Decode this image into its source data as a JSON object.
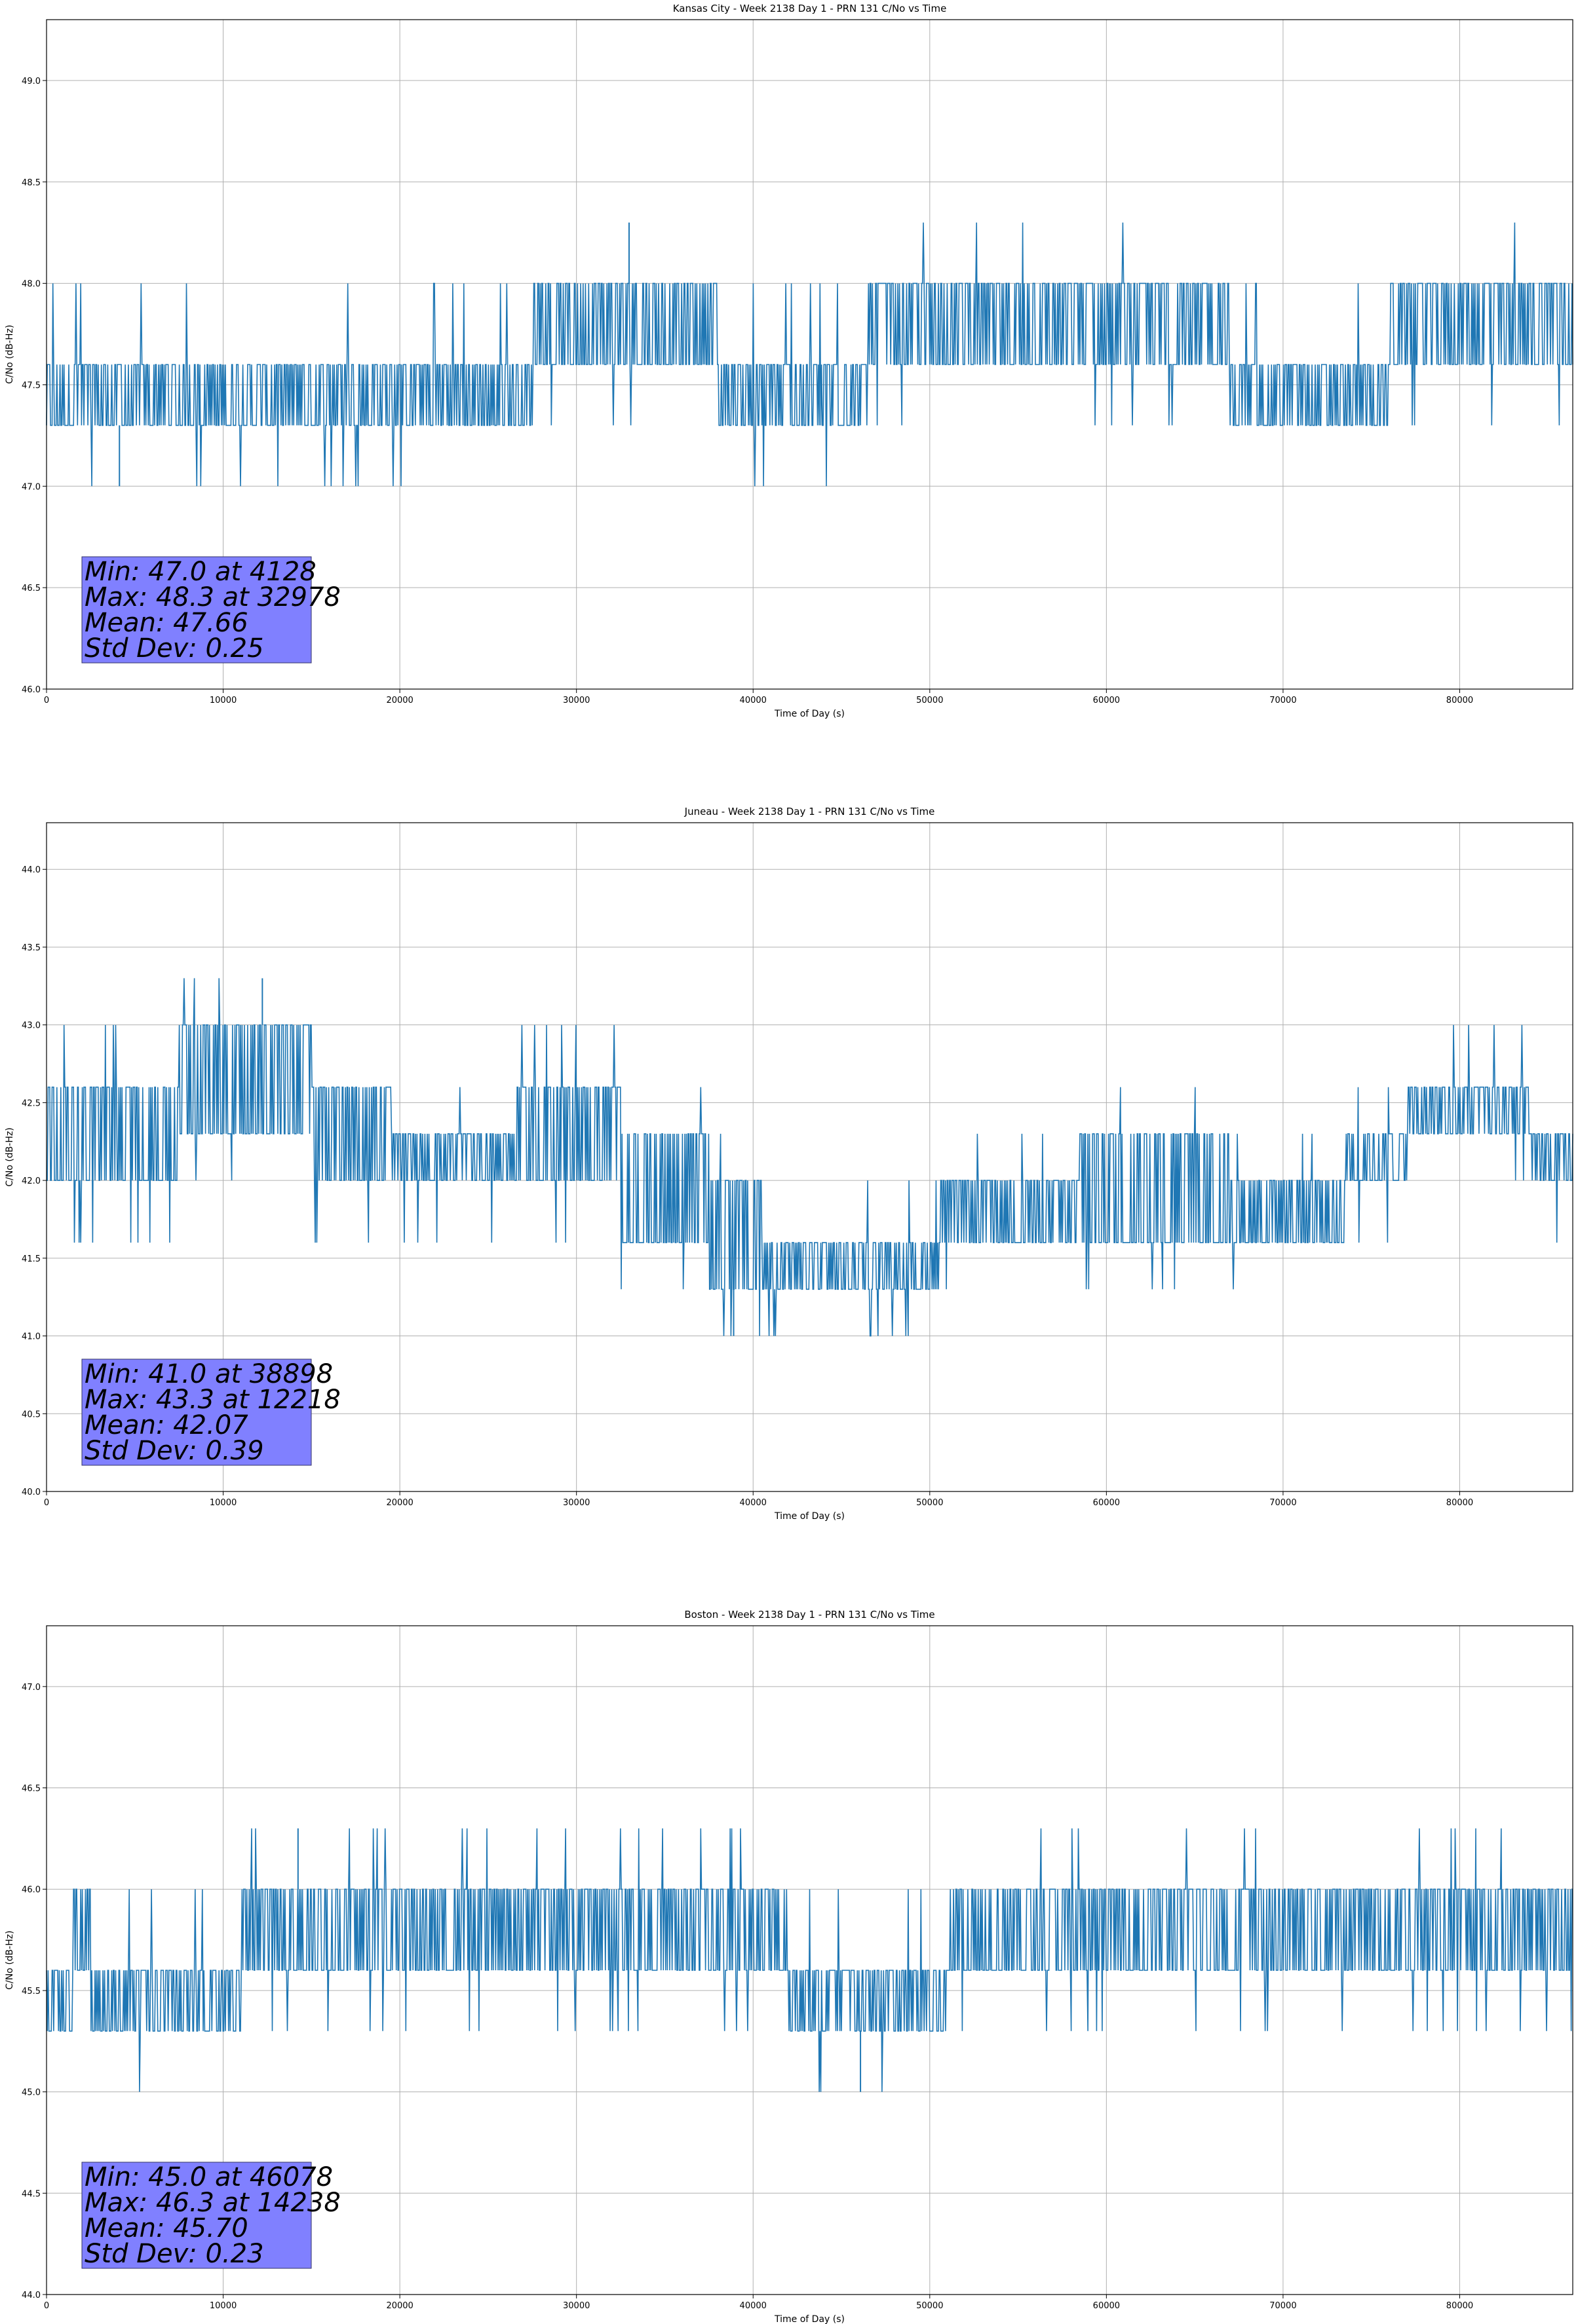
{
  "chart_data": [
    {
      "type": "line",
      "title": "Kansas City - Week 2138 Day 1 - PRN 131 C/No vs Time",
      "xlabel": "Time of Day (s)",
      "ylabel": "C/No (dB-Hz)",
      "xlim": [
        0,
        86400
      ],
      "ylim": [
        46.0,
        49.3
      ],
      "xticks": [
        "0",
        "10000",
        "20000",
        "30000",
        "40000",
        "50000",
        "60000",
        "70000",
        "80000"
      ],
      "yticks": [
        "46.0",
        "46.5",
        "47.0",
        "47.5",
        "48.0",
        "48.5",
        "49.0"
      ],
      "grid": true,
      "series_color": "#1f77b4",
      "quantization_levels": [
        47.0,
        47.3,
        47.6,
        48.0,
        48.3
      ],
      "segments": [
        {
          "x_start": 0,
          "x_end": 300,
          "low": 47.3,
          "high": 47.6
        },
        {
          "x_start": 300,
          "x_end": 400,
          "low": 47.3,
          "high": 48.0
        },
        {
          "x_start": 400,
          "x_end": 15000,
          "low": 47.3,
          "high": 47.6
        },
        {
          "x_start": 15000,
          "x_end": 27500,
          "low": 47.3,
          "high": 47.6
        },
        {
          "x_start": 27500,
          "x_end": 38000,
          "low": 47.6,
          "high": 48.0
        },
        {
          "x_start": 38000,
          "x_end": 46500,
          "low": 47.3,
          "high": 47.6
        },
        {
          "x_start": 46500,
          "x_end": 48500,
          "low": 47.6,
          "high": 48.0
        },
        {
          "x_start": 48500,
          "x_end": 57000,
          "low": 47.6,
          "high": 48.0
        },
        {
          "x_start": 57000,
          "x_end": 67000,
          "low": 47.6,
          "high": 48.0
        },
        {
          "x_start": 67000,
          "x_end": 76000,
          "low": 47.3,
          "high": 47.6
        },
        {
          "x_start": 76000,
          "x_end": 86400,
          "low": 47.6,
          "high": 48.0
        }
      ],
      "stats": {
        "min": "Min: 47.0 at 4128",
        "max": "Max: 48.3 at 32978",
        "mean": "Mean: 47.66",
        "std": "Std Dev: 0.25"
      }
    },
    {
      "type": "line",
      "title": "Juneau - Week 2138 Day 1 - PRN 131 C/No vs Time",
      "xlabel": "Time of Day (s)",
      "ylabel": "C/No (dB-Hz)",
      "xlim": [
        0,
        86400
      ],
      "ylim": [
        40.0,
        44.3
      ],
      "xticks": [
        "0",
        "10000",
        "20000",
        "30000",
        "40000",
        "50000",
        "60000",
        "70000",
        "80000"
      ],
      "yticks": [
        "40.0",
        "40.5",
        "41.0",
        "41.5",
        "42.0",
        "42.5",
        "43.0",
        "43.5",
        "44.0"
      ],
      "grid": true,
      "series_color": "#1f77b4",
      "quantization_levels": [
        41.0,
        41.3,
        41.6,
        42.0,
        42.3,
        42.6,
        43.0,
        43.3
      ],
      "segments": [
        {
          "x_start": 0,
          "x_end": 7500,
          "low": 42.0,
          "high": 42.6
        },
        {
          "x_start": 7500,
          "x_end": 15000,
          "low": 42.3,
          "high": 43.0
        },
        {
          "x_start": 15000,
          "x_end": 19500,
          "low": 42.0,
          "high": 42.6
        },
        {
          "x_start": 19500,
          "x_end": 26500,
          "low": 42.0,
          "high": 42.3
        },
        {
          "x_start": 26500,
          "x_end": 32500,
          "low": 42.0,
          "high": 42.6
        },
        {
          "x_start": 32500,
          "x_end": 37500,
          "low": 41.6,
          "high": 42.3
        },
        {
          "x_start": 37500,
          "x_end": 40500,
          "low": 41.3,
          "high": 42.0
        },
        {
          "x_start": 40500,
          "x_end": 50500,
          "low": 41.3,
          "high": 41.6
        },
        {
          "x_start": 50500,
          "x_end": 58500,
          "low": 41.6,
          "high": 42.0
        },
        {
          "x_start": 58500,
          "x_end": 67000,
          "low": 41.6,
          "high": 42.3
        },
        {
          "x_start": 67000,
          "x_end": 73500,
          "low": 41.6,
          "high": 42.0
        },
        {
          "x_start": 73500,
          "x_end": 77000,
          "low": 42.0,
          "high": 42.3
        },
        {
          "x_start": 77000,
          "x_end": 84000,
          "low": 42.3,
          "high": 42.6
        },
        {
          "x_start": 84000,
          "x_end": 86400,
          "low": 42.0,
          "high": 42.3
        }
      ],
      "stats": {
        "min": "Min: 41.0 at 38898",
        "max": "Max: 43.3 at 12218",
        "mean": "Mean: 42.07",
        "std": "Std Dev: 0.39"
      }
    },
    {
      "type": "line",
      "title": "Boston - Week 2138 Day 1 - PRN 131 C/No vs Time",
      "xlabel": "Time of Day (s)",
      "ylabel": "C/No (dB-Hz)",
      "xlim": [
        0,
        86400
      ],
      "ylim": [
        44.0,
        47.3
      ],
      "xticks": [
        "0",
        "10000",
        "20000",
        "30000",
        "40000",
        "50000",
        "60000",
        "70000",
        "80000"
      ],
      "yticks": [
        "44.0",
        "44.5",
        "45.0",
        "45.5",
        "46.0",
        "46.5",
        "47.0"
      ],
      "grid": true,
      "series_color": "#1f77b4",
      "quantization_levels": [
        45.0,
        45.3,
        45.6,
        46.0,
        46.3
      ],
      "segments": [
        {
          "x_start": 0,
          "x_end": 1500,
          "low": 45.3,
          "high": 45.6
        },
        {
          "x_start": 1500,
          "x_end": 2500,
          "low": 45.6,
          "high": 46.0
        },
        {
          "x_start": 2500,
          "x_end": 11000,
          "low": 45.3,
          "high": 45.6
        },
        {
          "x_start": 11000,
          "x_end": 42000,
          "low": 45.6,
          "high": 46.0
        },
        {
          "x_start": 42000,
          "x_end": 51000,
          "low": 45.3,
          "high": 45.6
        },
        {
          "x_start": 51000,
          "x_end": 73500,
          "low": 45.6,
          "high": 46.0
        },
        {
          "x_start": 73500,
          "x_end": 86400,
          "low": 45.6,
          "high": 46.0
        }
      ],
      "stats": {
        "min": "Min: 45.0 at 46078",
        "max": "Max: 46.3 at 14238",
        "mean": "Mean: 45.70",
        "std": "Std Dev: 0.23"
      }
    }
  ]
}
